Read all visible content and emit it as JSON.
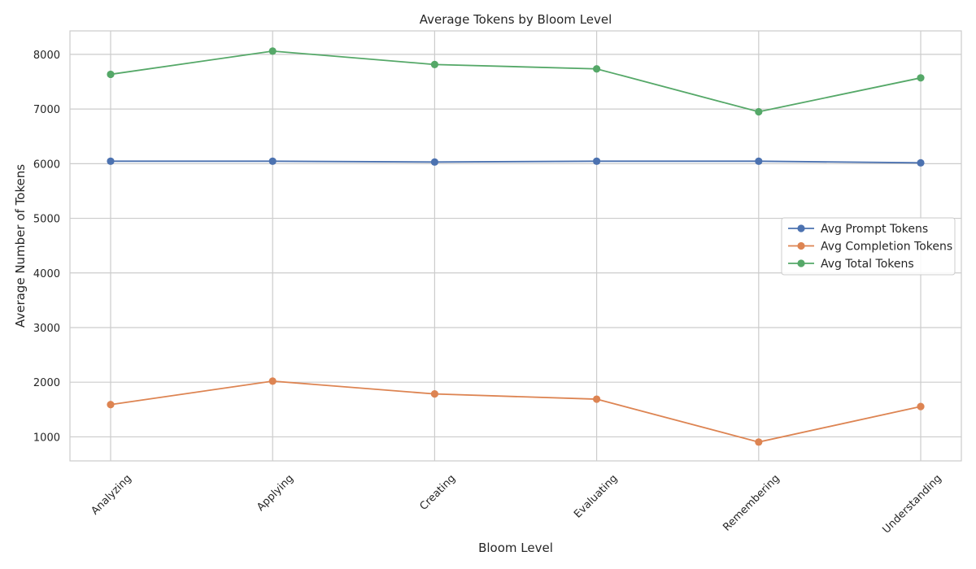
{
  "chart_data": {
    "type": "line",
    "title": "Average Tokens by Bloom Level",
    "xlabel": "Bloom Level",
    "ylabel": "Average Number of Tokens",
    "categories": [
      "Analyzing",
      "Applying",
      "Creating",
      "Evaluating",
      "Remembering",
      "Understanding"
    ],
    "ylim": [
      560,
      8430
    ],
    "yticks": [
      1000,
      2000,
      3000,
      4000,
      5000,
      6000,
      7000,
      8000
    ],
    "grid": true,
    "legend_position": "center-right",
    "series": [
      {
        "name": "Avg Prompt Tokens",
        "color": "#4c72b0",
        "values": [
          6045,
          6045,
          6030,
          6045,
          6045,
          6015
        ]
      },
      {
        "name": "Avg Completion Tokens",
        "color": "#dd8452",
        "values": [
          1590,
          2020,
          1785,
          1690,
          905,
          1555
        ]
      },
      {
        "name": "Avg Total Tokens",
        "color": "#55a868",
        "values": [
          7635,
          8060,
          7815,
          7735,
          6950,
          7570
        ]
      }
    ]
  }
}
